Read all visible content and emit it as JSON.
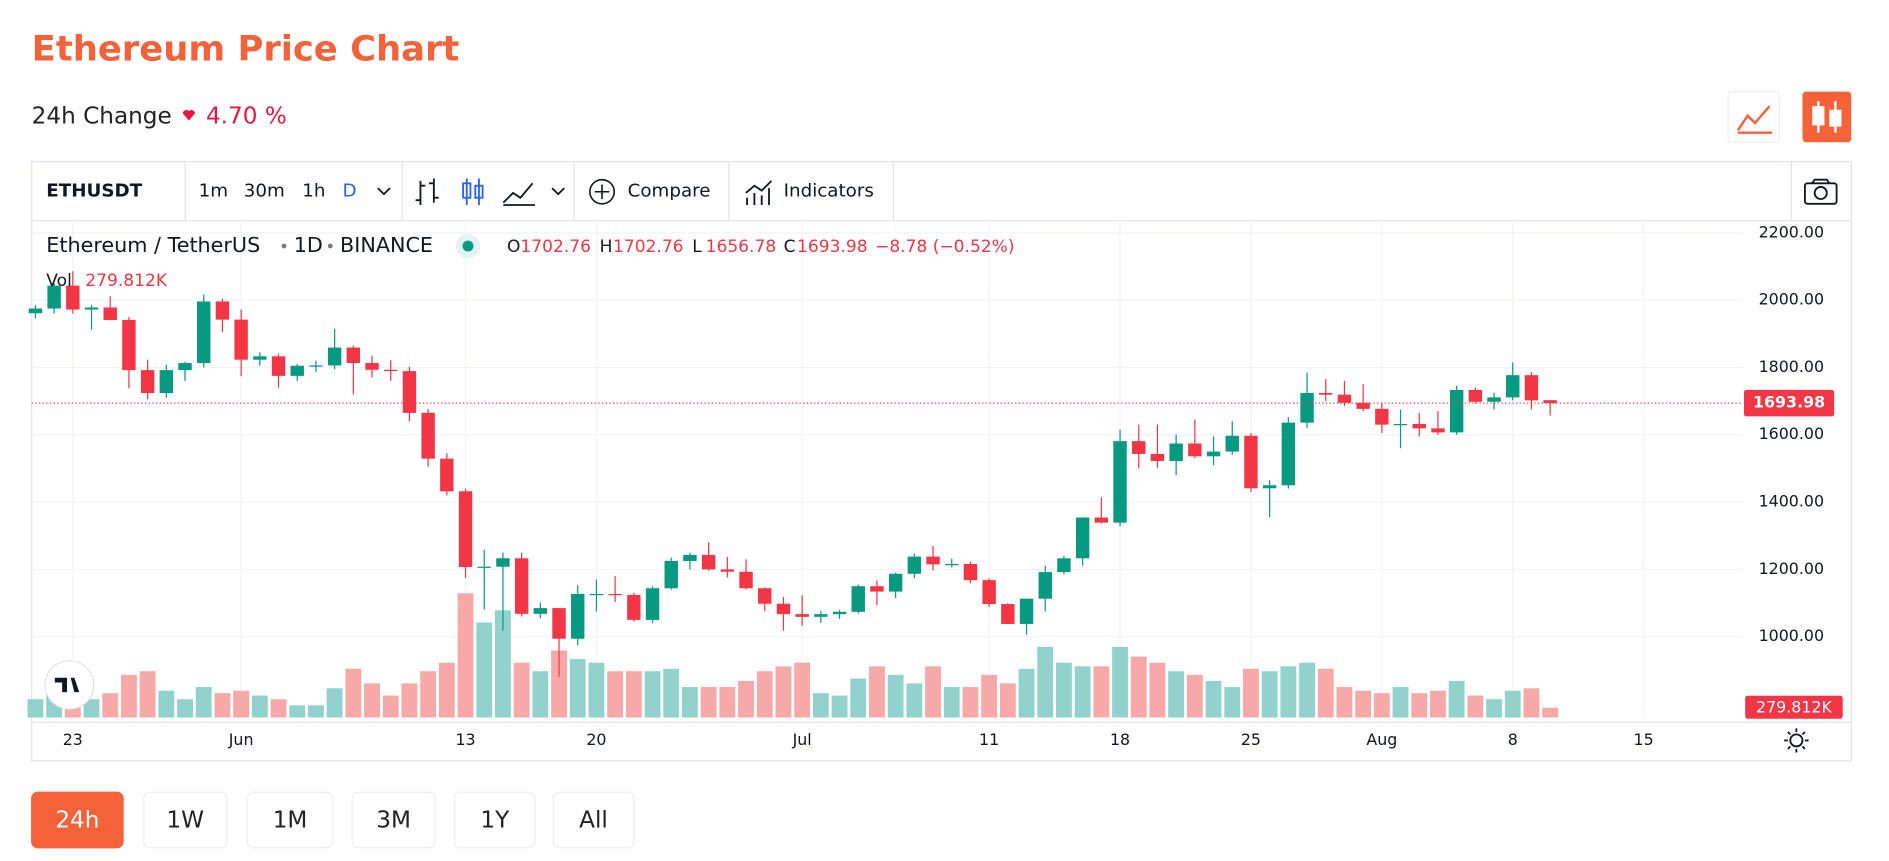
{
  "header": {
    "title": "Ethereum Price Chart",
    "change_label": "24h Change",
    "change_value": "4.70 %"
  },
  "toolbar": {
    "symbol": "ETHUSDT",
    "intervals": [
      "1m",
      "30m",
      "1h",
      "D"
    ],
    "compare": "Compare",
    "indicators": "Indicators"
  },
  "legend": {
    "pair": "Ethereum / TetherUS",
    "interval": "1D",
    "exchange": "BINANCE",
    "ohlc_letters": [
      "O",
      "H",
      "L",
      "C"
    ],
    "change": "−8.78 (−0.52%)",
    "vol": "Vol",
    "vol_value": "279.812K"
  },
  "chart": {
    "type": "candlestick",
    "up_color": "#089981",
    "down_color": "#f23645",
    "up_volume_color": "#92d2cc",
    "down_volume_color": "#f7a9a7",
    "ylim": [
      760,
      2236
    ],
    "xlim": [
      -0.2,
      91.3
    ],
    "grid": true,
    "yticks": [
      {
        "value": 1000,
        "label": "1000.00"
      },
      {
        "value": 1200,
        "label": "1200.00"
      },
      {
        "value": 1400,
        "label": "1400.00"
      },
      {
        "value": 1600,
        "label": "1600.00"
      },
      {
        "value": 1800,
        "label": "1800.00"
      },
      {
        "value": 2000,
        "label": "2000.00"
      },
      {
        "value": 2200,
        "label": "2200.00"
      }
    ],
    "xticks": [
      {
        "value": 2,
        "label": "23"
      },
      {
        "value": 11,
        "label": "Jun"
      },
      {
        "value": 23,
        "label": "13"
      },
      {
        "value": 30,
        "label": "20"
      },
      {
        "value": 41,
        "label": "Jul"
      },
      {
        "value": 51,
        "label": "11"
      },
      {
        "value": 58,
        "label": "18"
      },
      {
        "value": 65,
        "label": "25"
      },
      {
        "value": 72,
        "label": "Aug"
      },
      {
        "value": 79,
        "label": "8"
      },
      {
        "value": 86,
        "label": "15"
      }
    ],
    "candles": [
      [
        1961,
        1985,
        1946,
        1975,
        525
      ],
      [
        1975,
        2050,
        1960,
        2043,
        700
      ],
      [
        2043,
        2086,
        1960,
        1972,
        875
      ],
      [
        1972,
        1985,
        1912,
        1978,
        525
      ],
      [
        1978,
        2012,
        1940,
        1941,
        700
      ],
      [
        1941,
        1950,
        1738,
        1792,
        1225
      ],
      [
        1792,
        1823,
        1705,
        1724,
        1330
      ],
      [
        1724,
        1808,
        1710,
        1792,
        770
      ],
      [
        1792,
        1817,
        1760,
        1813,
        525
      ],
      [
        1813,
        2016,
        1800,
        1996,
        875
      ],
      [
        1996,
        2004,
        1905,
        1942,
        700
      ],
      [
        1942,
        1972,
        1774,
        1823,
        770
      ],
      [
        1823,
        1845,
        1805,
        1833,
        630
      ],
      [
        1833,
        1840,
        1740,
        1775,
        525
      ],
      [
        1775,
        1810,
        1760,
        1805,
        350
      ],
      [
        1805,
        1820,
        1786,
        1806,
        350
      ],
      [
        1806,
        1915,
        1795,
        1859,
        840
      ],
      [
        1859,
        1865,
        1720,
        1813,
        1400
      ],
      [
        1813,
        1835,
        1770,
        1793,
        980
      ],
      [
        1793,
        1822,
        1760,
        1789,
        630
      ],
      [
        1789,
        1802,
        1640,
        1665,
        980
      ],
      [
        1665,
        1676,
        1505,
        1529,
        1330
      ],
      [
        1529,
        1545,
        1420,
        1432,
        1575
      ],
      [
        1432,
        1440,
        1175,
        1207,
        3570
      ],
      [
        1207,
        1258,
        1081,
        1208,
        2730
      ],
      [
        1208,
        1250,
        1018,
        1233,
        3080
      ],
      [
        1233,
        1250,
        1060,
        1068,
        1575
      ],
      [
        1068,
        1101,
        1055,
        1085,
        1330
      ],
      [
        1085,
        1085,
        881,
        994,
        1925
      ],
      [
        994,
        1153,
        975,
        1127,
        1680
      ],
      [
        1127,
        1170,
        1075,
        1127,
        1575
      ],
      [
        1127,
        1180,
        1103,
        1124,
        1330
      ],
      [
        1124,
        1130,
        1045,
        1050,
        1330
      ],
      [
        1050,
        1150,
        1040,
        1144,
        1330
      ],
      [
        1144,
        1235,
        1140,
        1225,
        1400
      ],
      [
        1225,
        1250,
        1200,
        1243,
        875
      ],
      [
        1243,
        1280,
        1196,
        1200,
        875
      ],
      [
        1200,
        1237,
        1176,
        1193,
        875
      ],
      [
        1193,
        1230,
        1140,
        1144,
        1050
      ],
      [
        1144,
        1146,
        1076,
        1098,
        1330
      ],
      [
        1098,
        1118,
        1018,
        1067,
        1470
      ],
      [
        1067,
        1123,
        1033,
        1059,
        1575
      ],
      [
        1059,
        1077,
        1041,
        1067,
        700
      ],
      [
        1067,
        1079,
        1053,
        1074,
        630
      ],
      [
        1074,
        1155,
        1069,
        1150,
        1120
      ],
      [
        1150,
        1167,
        1094,
        1134,
        1470
      ],
      [
        1134,
        1190,
        1115,
        1187,
        1225
      ],
      [
        1187,
        1246,
        1174,
        1238,
        980
      ],
      [
        1238,
        1270,
        1197,
        1215,
        1470
      ],
      [
        1215,
        1232,
        1206,
        1216,
        875
      ],
      [
        1216,
        1223,
        1159,
        1168,
        875
      ],
      [
        1168,
        1173,
        1088,
        1097,
        1225
      ],
      [
        1097,
        1100,
        1038,
        1038,
        980
      ],
      [
        1038,
        1113,
        1006,
        1113,
        1400
      ],
      [
        1113,
        1211,
        1075,
        1192,
        2030
      ],
      [
        1192,
        1240,
        1185,
        1233,
        1575
      ],
      [
        1233,
        1355,
        1211,
        1354,
        1470
      ],
      [
        1354,
        1414,
        1336,
        1339,
        1470
      ],
      [
        1339,
        1615,
        1328,
        1581,
        2030
      ],
      [
        1581,
        1630,
        1500,
        1543,
        1750
      ],
      [
        1543,
        1630,
        1502,
        1522,
        1575
      ],
      [
        1522,
        1600,
        1480,
        1574,
        1330
      ],
      [
        1574,
        1645,
        1530,
        1536,
        1225
      ],
      [
        1536,
        1595,
        1510,
        1550,
        1050
      ],
      [
        1550,
        1640,
        1540,
        1597,
        875
      ],
      [
        1597,
        1605,
        1430,
        1441,
        1400
      ],
      [
        1441,
        1465,
        1355,
        1450,
        1330
      ],
      [
        1450,
        1652,
        1440,
        1636,
        1470
      ],
      [
        1636,
        1785,
        1620,
        1724,
        1575
      ],
      [
        1724,
        1765,
        1700,
        1719,
        1400
      ],
      [
        1719,
        1760,
        1685,
        1695,
        875
      ],
      [
        1695,
        1750,
        1670,
        1677,
        770
      ],
      [
        1677,
        1695,
        1605,
        1630,
        700
      ],
      [
        1630,
        1675,
        1560,
        1632,
        875
      ],
      [
        1632,
        1665,
        1595,
        1619,
        700
      ],
      [
        1619,
        1670,
        1600,
        1607,
        770
      ],
      [
        1607,
        1745,
        1600,
        1733,
        1050
      ],
      [
        1733,
        1740,
        1693,
        1698,
        630
      ],
      [
        1698,
        1725,
        1675,
        1711,
        525
      ],
      [
        1711,
        1815,
        1702,
        1777,
        770
      ],
      [
        1777,
        1786,
        1675,
        1702,
        840
      ],
      [
        1702.76,
        1702.76,
        1656.78,
        1693.98,
        279.812
      ]
    ]
  },
  "ranges": [
    "24h",
    "1W",
    "1M",
    "3M",
    "1Y",
    "All"
  ]
}
